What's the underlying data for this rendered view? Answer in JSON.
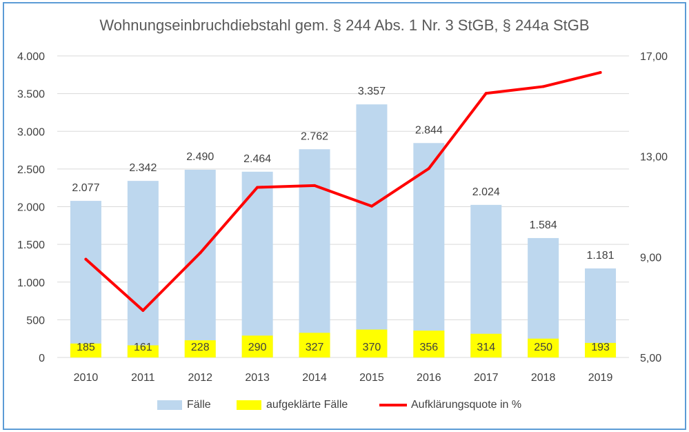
{
  "chart_data": {
    "type": "bar",
    "title": "Wohnungseinbruchdiebstahl gem. § 244 Abs. 1 Nr. 3 StGB, § 244a StGB",
    "categories": [
      "2010",
      "2011",
      "2012",
      "2013",
      "2014",
      "2015",
      "2016",
      "2017",
      "2018",
      "2019"
    ],
    "series": [
      {
        "name": "Fälle",
        "type": "bar",
        "axis": "left",
        "color": "#bdd7ee",
        "values": [
          2077,
          2342,
          2490,
          2464,
          2762,
          3357,
          2844,
          2024,
          1584,
          1181
        ],
        "labels": [
          "2.077",
          "2.342",
          "2.490",
          "2.464",
          "2.762",
          "3.357",
          "2.844",
          "2.024",
          "1.584",
          "1.181"
        ]
      },
      {
        "name": "aufgeklärte Fälle",
        "type": "bar",
        "axis": "left",
        "color": "#ffff00",
        "values": [
          185,
          161,
          228,
          290,
          327,
          370,
          356,
          314,
          250,
          193
        ],
        "labels": [
          "185",
          "161",
          "228",
          "290",
          "327",
          "370",
          "356",
          "314",
          "250",
          "193"
        ]
      },
      {
        "name": "Aufklärungsquote in %",
        "type": "line",
        "axis": "right",
        "color": "#ff0000",
        "values": [
          8.91,
          6.87,
          9.16,
          11.77,
          11.84,
          11.02,
          12.52,
          15.51,
          15.78,
          16.34
        ]
      }
    ],
    "y_left": {
      "min": 0,
      "max": 4000,
      "ticks": [
        0,
        500,
        1000,
        1500,
        2000,
        2500,
        3000,
        3500,
        4000
      ],
      "tick_labels": [
        "0",
        "500",
        "1.000",
        "1.500",
        "2.000",
        "2.500",
        "3.000",
        "3.500",
        "4.000"
      ]
    },
    "y_right": {
      "min": 5,
      "max": 17,
      "ticks": [
        5,
        9,
        13,
        17
      ],
      "tick_labels": [
        "5,00",
        "9,00",
        "13,00",
        "17,00"
      ]
    },
    "grid": true,
    "legend_position": "bottom"
  }
}
